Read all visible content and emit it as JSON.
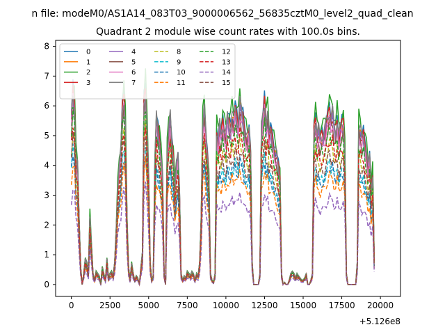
{
  "figure": {
    "suptitle": "n file: modeM0/AS1A14_083T03_9000006562_56835cztM0_level2_quad_clean"
  },
  "chart_data": {
    "type": "line",
    "title": "Quadrant 2 module wise count rates with 100.0s bins.",
    "xlabel": "",
    "ylabel": "",
    "x_offset_label": "+5.126e8",
    "xlim": [
      -1020,
      21300
    ],
    "ylim": [
      -0.4,
      8.2
    ],
    "x_ticks": [
      0,
      2500,
      5000,
      7500,
      10000,
      12500,
      15000,
      17500,
      20000
    ],
    "x_tick_labels": [
      "0",
      "2500",
      "5000",
      "7500",
      "10000",
      "12500",
      "15000",
      "17500",
      "20000"
    ],
    "y_ticks": [
      0,
      1,
      2,
      3,
      4,
      5,
      6,
      7,
      8
    ],
    "y_tick_labels": [
      "0",
      "1",
      "2",
      "3",
      "4",
      "5",
      "6",
      "7",
      "8"
    ],
    "grid": false,
    "legend": {
      "placement": "top-left",
      "columns": 4
    },
    "x": [
      0,
      100,
      200,
      300,
      400,
      500,
      600,
      700,
      800,
      900,
      1000,
      1100,
      1200,
      1300,
      1400,
      1500,
      1600,
      1700,
      1800,
      1900,
      2000,
      2100,
      2200,
      2300,
      2400,
      2500,
      2600,
      2700,
      2800,
      2900,
      3000,
      3100,
      3200,
      3300,
      3400,
      3500,
      3600,
      3700,
      3800,
      3900,
      4000,
      4100,
      4200,
      4300,
      4400,
      4500,
      4600,
      4700,
      4800,
      4900,
      5000,
      5100,
      5200,
      5300,
      5400,
      5500,
      5600,
      5700,
      5800,
      5900,
      6000,
      6100,
      6200,
      6300,
      6400,
      6500,
      6600,
      6700,
      6800,
      6900,
      7000,
      7100,
      7200,
      7300,
      7400,
      7500,
      7600,
      7700,
      7800,
      7900,
      8000,
      8100,
      8200,
      8300,
      8400,
      8500,
      8600,
      8700,
      8800,
      8900,
      9000,
      9100,
      9200,
      9300,
      9400,
      9500,
      9600,
      9700,
      9800,
      9900,
      10000,
      10100,
      10200,
      10300,
      10400,
      10500,
      10600,
      10700,
      10800,
      10900,
      11000,
      11100,
      11200,
      11300,
      11400,
      11500,
      11600,
      11700,
      11800,
      11900,
      12000,
      12100,
      12200,
      12300,
      12400,
      12500,
      12600,
      12700,
      12800,
      12900,
      13000,
      13100,
      13200,
      13300,
      13400,
      13500,
      13600,
      13700,
      13800,
      13900,
      14000,
      14100,
      14200,
      14300,
      14400,
      14500,
      14600,
      14700,
      14800,
      14900,
      15000,
      15100,
      15200,
      15300,
      15400,
      15500,
      15600,
      15700,
      15800,
      15900,
      16000,
      16100,
      16200,
      16300,
      16400,
      16500,
      16600,
      16700,
      16800,
      16900,
      17000,
      17100,
      17200,
      17300,
      17400,
      17500,
      17600,
      17700,
      17800,
      17900,
      18000,
      18100,
      18200,
      18300,
      18400,
      18500,
      18600,
      18700,
      18800,
      18900,
      19000,
      19100,
      19200,
      19300,
      19400,
      19500,
      19600,
      19700,
      19800,
      19900,
      20000,
      20100,
      20200,
      20300
    ],
    "profile": [
      0.78,
      0.9,
      0.85,
      0.6,
      0.55,
      0.3,
      0.08,
      0,
      0.05,
      0.12,
      0.1,
      0.05,
      0.32,
      0.18,
      0.05,
      0.02,
      0.06,
      0.05,
      0.04,
      0,
      0.08,
      0.05,
      0.02,
      0.12,
      0.03,
      0.05,
      0.06,
      0.04,
      0.1,
      0.25,
      0.45,
      0.55,
      0.62,
      0.82,
      0.88,
      0.75,
      0.3,
      0.08,
      0.02,
      0.1,
      0.05,
      0.02,
      0.04,
      0.03,
      0,
      0.08,
      0.15,
      0.85,
      0.92,
      0.72,
      0.5,
      0.1,
      0.02,
      0.04,
      0.55,
      0.78,
      0.72,
      0.68,
      0.6,
      0.5,
      0.05,
      0,
      0.62,
      0.72,
      0.78,
      0.65,
      0.6,
      0.45,
      0.55,
      0.6,
      0.42,
      0.05,
      0.02,
      0.04,
      0.03,
      0.06,
      0.05,
      0.04,
      0.06,
      0.05,
      0.02,
      0.05,
      0.04,
      0.1,
      0.3,
      0.75,
      0.82,
      0.7,
      0.6,
      0.5,
      0.05,
      0.02,
      0.01,
      0.05,
      0.72,
      0.68,
      0.74,
      0.7,
      0.76,
      0.72,
      0.7,
      0.78,
      0.75,
      0.74,
      0.8,
      0.76,
      0.82,
      0.78,
      0.75,
      0.85,
      0.8,
      0.78,
      0.72,
      0.7,
      0.68,
      0.72,
      0.6,
      0.1,
      0,
      0,
      0,
      0,
      0.05,
      0.72,
      0.78,
      0.85,
      0.75,
      0.8,
      0.7,
      0.72,
      0.68,
      0.65,
      0.62,
      0.6,
      0.55,
      0.5,
      0.05,
      0,
      0.01,
      0,
      0,
      0.02,
      0.05,
      0.06,
      0.05,
      0.03,
      0.05,
      0.04,
      0.03,
      0.02,
      0.02,
      0.03,
      0.05,
      0,
      0,
      0.02,
      0.05,
      0.72,
      0.78,
      0.7,
      0.72,
      0.68,
      0.7,
      0.7,
      0.72,
      0.75,
      0.78,
      0.82,
      0.78,
      0.8,
      0.74,
      0.72,
      0.78,
      0.7,
      0.72,
      0.75,
      0.76,
      0.62,
      0.05,
      0,
      0,
      0,
      0,
      0,
      0,
      0.1,
      0.74,
      0.72,
      0.68,
      0.7,
      0.65,
      0.62,
      0.55,
      0.6,
      0.45,
      0.52,
      0.12
    ],
    "series": [
      {
        "name": "0",
        "color": "#1f77b4",
        "dashed": false,
        "scale": 7.3
      },
      {
        "name": "1",
        "color": "#ff7f0e",
        "dashed": false,
        "scale": 7.0
      },
      {
        "name": "2",
        "color": "#2ca02c",
        "dashed": false,
        "scale": 7.6
      },
      {
        "name": "3",
        "color": "#d62728",
        "dashed": false,
        "scale": 7.1
      },
      {
        "name": "4",
        "color": "#9467bd",
        "dashed": false,
        "scale": 6.9
      },
      {
        "name": "5",
        "color": "#8c564b",
        "dashed": false,
        "scale": 6.7
      },
      {
        "name": "6",
        "color": "#e377c2",
        "dashed": false,
        "scale": 6.8
      },
      {
        "name": "7",
        "color": "#7f7f7f",
        "dashed": false,
        "scale": 7.2
      },
      {
        "name": "8",
        "color": "#bcbd22",
        "dashed": true,
        "scale": 5.8
      },
      {
        "name": "9",
        "color": "#17becf",
        "dashed": true,
        "scale": 5.0
      },
      {
        "name": "10",
        "color": "#1f77b4",
        "dashed": true,
        "scale": 4.9
      },
      {
        "name": "11",
        "color": "#ff7f0e",
        "dashed": true,
        "scale": 4.5
      },
      {
        "name": "12",
        "color": "#2ca02c",
        "dashed": true,
        "scale": 6.3
      },
      {
        "name": "13",
        "color": "#d62728",
        "dashed": true,
        "scale": 6.0
      },
      {
        "name": "14",
        "color": "#9467bd",
        "dashed": true,
        "scale": 3.6
      },
      {
        "name": "15",
        "color": "#8c564b",
        "dashed": true,
        "scale": 5.4
      }
    ]
  }
}
